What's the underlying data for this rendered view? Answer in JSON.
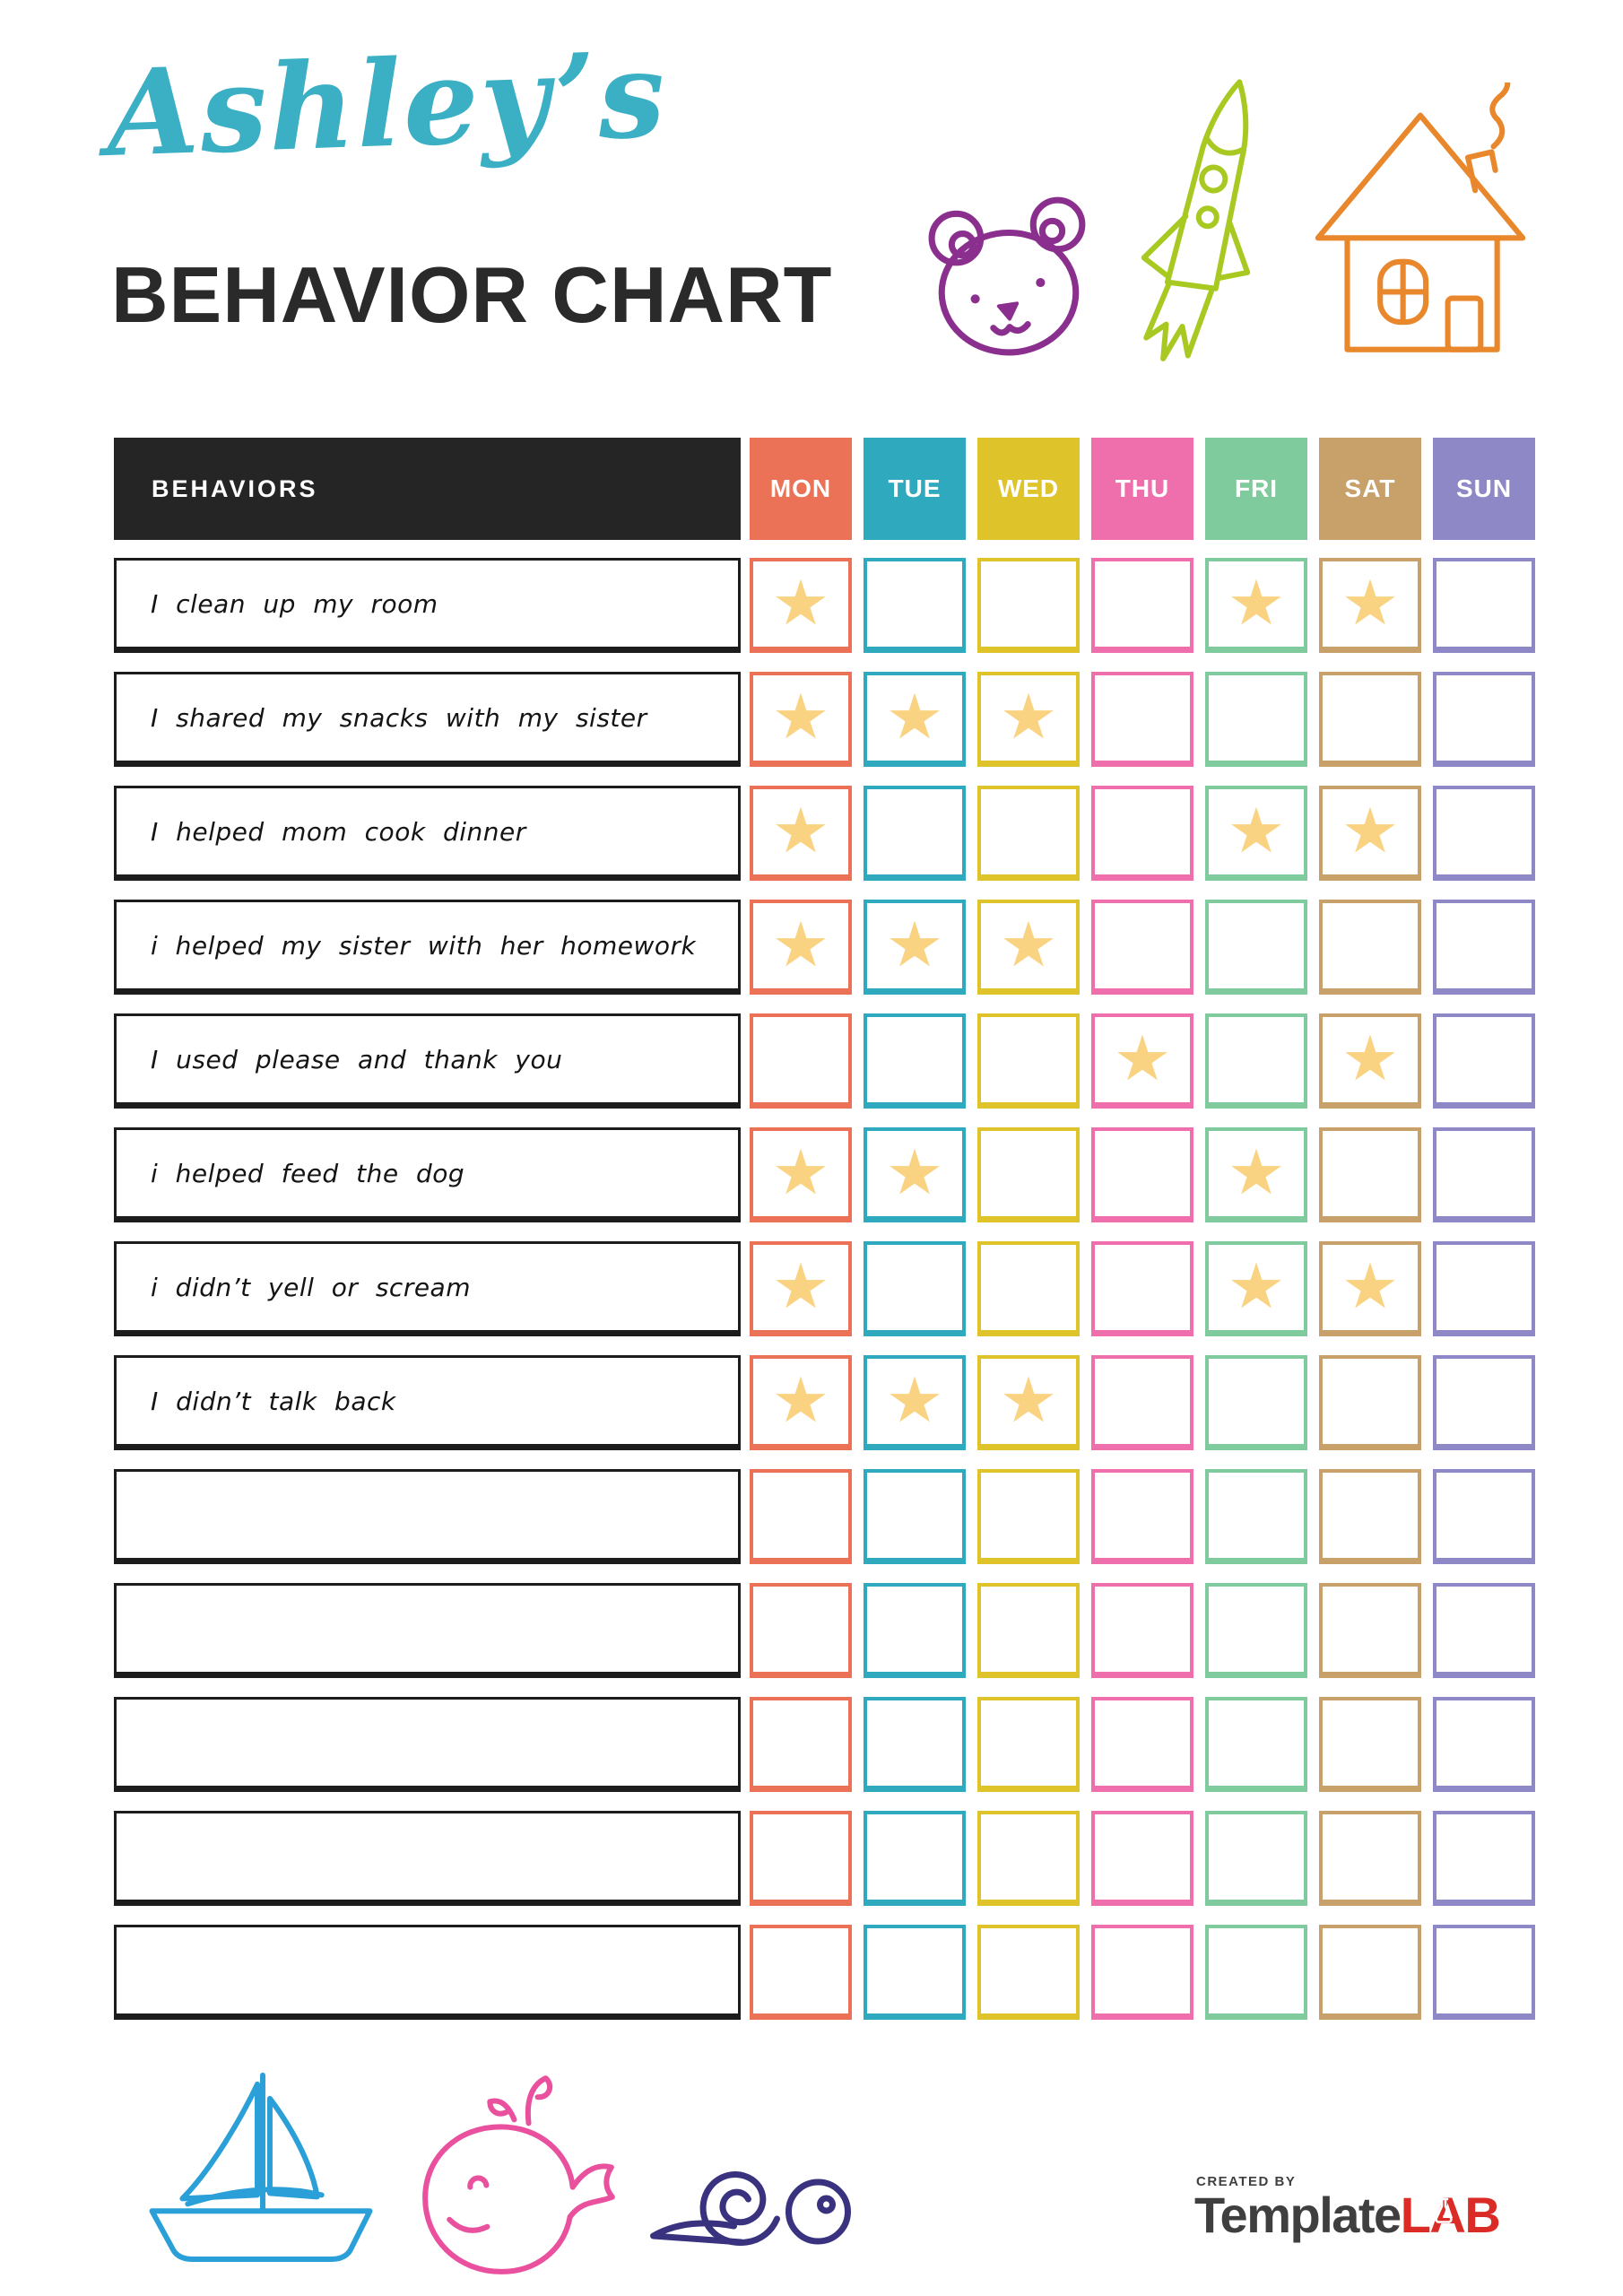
{
  "page": {
    "title_script": "Ashley’s",
    "title_main": "BEHAVIOR CHART"
  },
  "table": {
    "behaviors_header": "BEHAVIORS",
    "days": [
      {
        "label": "MON",
        "color": "#EB7257"
      },
      {
        "label": "TUE",
        "color": "#2FA9BE"
      },
      {
        "label": "WED",
        "color": "#DEC32B"
      },
      {
        "label": "THU",
        "color": "#EE6FAC"
      },
      {
        "label": "FRI",
        "color": "#80CB9D"
      },
      {
        "label": "SAT",
        "color": "#C7A169"
      },
      {
        "label": "SUN",
        "color": "#8E88C6"
      }
    ],
    "rows": [
      {
        "label": "I clean up my room",
        "stars": [
          0,
          4,
          5
        ]
      },
      {
        "label": "I shared my snacks with my sister",
        "stars": [
          0,
          1,
          2
        ]
      },
      {
        "label": "I helped mom cook dinner",
        "stars": [
          0,
          4,
          5
        ]
      },
      {
        "label": "i helped my sister with her homework",
        "stars": [
          0,
          1,
          2
        ]
      },
      {
        "label": "I used please and thank you",
        "stars": [
          3,
          5
        ]
      },
      {
        "label": "i helped feed the dog",
        "stars": [
          0,
          1,
          4
        ]
      },
      {
        "label": "i didn’t yell or scream",
        "stars": [
          0,
          4,
          5
        ]
      },
      {
        "label": "I didn’t talk back",
        "stars": [
          0,
          1,
          2
        ]
      },
      {
        "label": "",
        "stars": []
      },
      {
        "label": "",
        "stars": []
      },
      {
        "label": "",
        "stars": []
      },
      {
        "label": "",
        "stars": []
      },
      {
        "label": "",
        "stars": []
      }
    ]
  },
  "doodles": {
    "top": [
      "bear",
      "rocket",
      "house"
    ],
    "bottom": [
      "sailboat",
      "whale",
      "snail"
    ]
  },
  "footer": {
    "created_by": "CREATED BY",
    "logo_template": "Template",
    "logo_lab": "LAB"
  },
  "colors": {
    "title_teal": "#3BAFC4",
    "text_dark": "#2A2A2A",
    "header_bg": "#252525",
    "row_border": "#1C1C1C",
    "star": "#F9D381",
    "bear": "#8B2F8F",
    "rocket": "#A8C922",
    "house": "#E8872B",
    "boat": "#2B9FD7",
    "whale": "#E9509E",
    "snail": "#39327F",
    "logo_gray": "#3F3F3F",
    "logo_red": "#DB2B27"
  }
}
